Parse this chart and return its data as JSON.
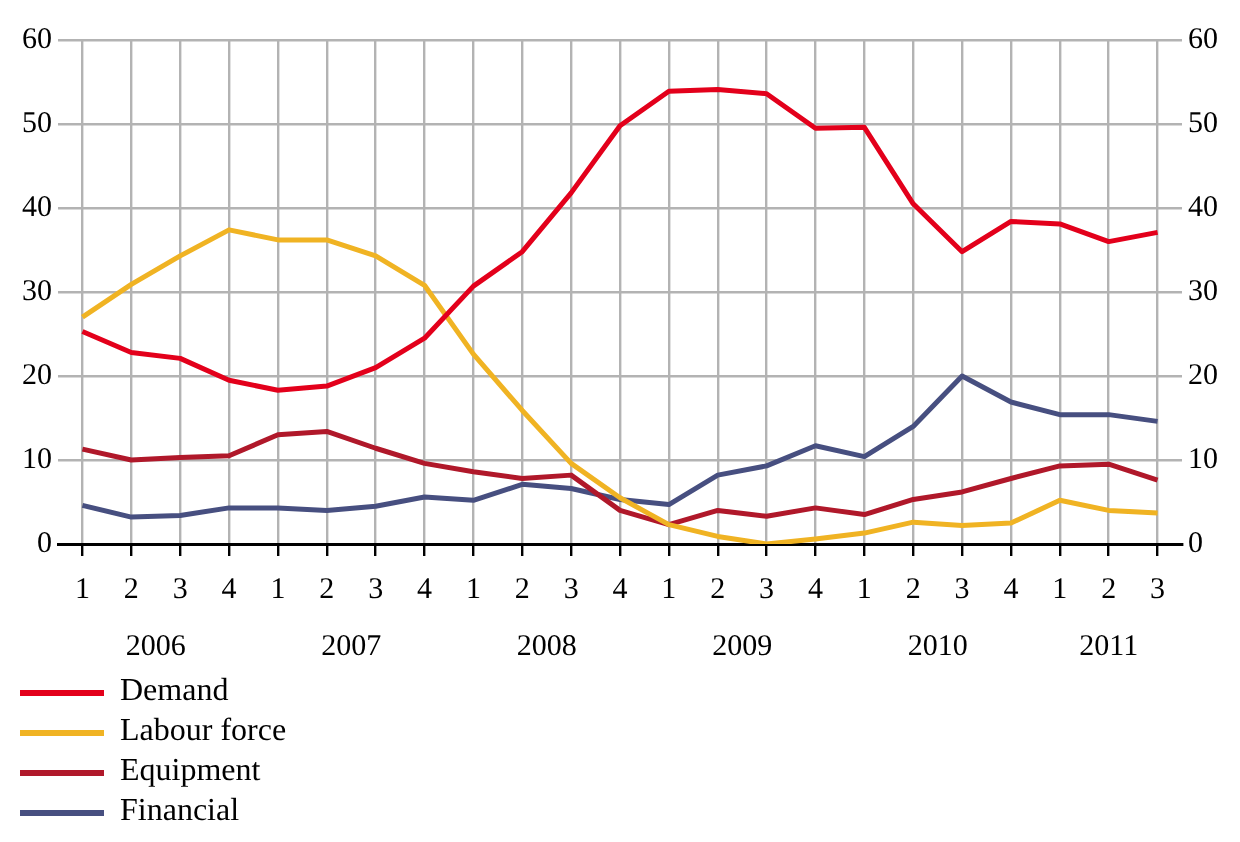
{
  "chart_data": {
    "type": "line",
    "categories": [
      "1",
      "2",
      "3",
      "4",
      "1",
      "2",
      "3",
      "4",
      "1",
      "2",
      "3",
      "4",
      "1",
      "2",
      "3",
      "4",
      "1",
      "2",
      "3",
      "4",
      "1",
      "2",
      "3"
    ],
    "series": [
      {
        "name": "Demand",
        "color": "#e3001b",
        "values": [
          25.3,
          22.8,
          22.1,
          19.5,
          18.3,
          18.8,
          21,
          24.5,
          30.7,
          34.8,
          41.8,
          49.8,
          53.9,
          54.1,
          53.6,
          49.5,
          49.6,
          40.5,
          34.8,
          38.4,
          38.1,
          36,
          37.1
        ]
      },
      {
        "name": "Labour force",
        "color": "#f0b323",
        "values": [
          27,
          30.9,
          34.3,
          37.4,
          36.2,
          36.2,
          34.3,
          30.8,
          22.6,
          15.9,
          9.6,
          5.5,
          2.3,
          0.9,
          0,
          0.6,
          1.3,
          2.6,
          2.2,
          2.5,
          5.2,
          4,
          3.7
        ]
      },
      {
        "name": "Equipment",
        "color": "#b0182a",
        "values": [
          11.3,
          10,
          10.3,
          10.5,
          13,
          13.4,
          11.4,
          9.6,
          8.6,
          7.8,
          8.2,
          4,
          2.3,
          4,
          3.3,
          4.3,
          3.5,
          5.3,
          6.2,
          7.8,
          9.3,
          9.5,
          7.6
        ]
      },
      {
        "name": "Financial",
        "color": "#474f80",
        "values": [
          4.6,
          3.2,
          3.4,
          4.3,
          4.3,
          4,
          4.5,
          5.6,
          5.2,
          7.1,
          6.6,
          5.3,
          4.7,
          8.2,
          9.3,
          11.7,
          10.4,
          14,
          20,
          16.9,
          15.4,
          15.4,
          14.6
        ]
      }
    ],
    "annotations": [
      "2006",
      "2007",
      "2008",
      "2009",
      "2010",
      "2011"
    ],
    "ylim": [
      0,
      60
    ],
    "yticks": [
      0,
      10,
      20,
      30,
      40,
      50,
      60
    ],
    "y2lim": [
      0,
      60
    ],
    "y2ticks": [
      0,
      10,
      20,
      30,
      40,
      50,
      60
    ],
    "grid": true,
    "legend": "bottom left",
    "marker": "none",
    "line_style": "solid"
  }
}
